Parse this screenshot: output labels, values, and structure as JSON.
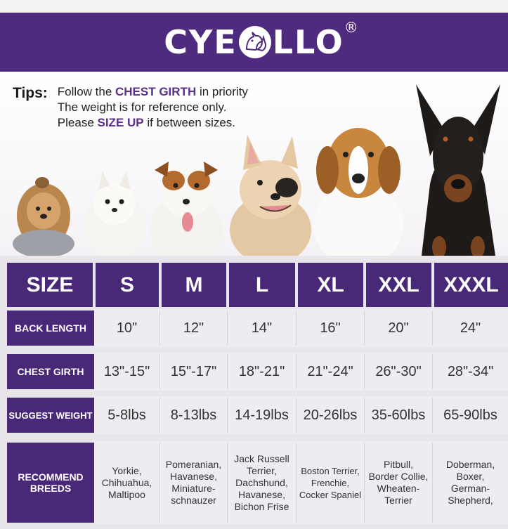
{
  "brand": {
    "left": "CYE",
    "right": "LLO",
    "reg": "®"
  },
  "tips": {
    "label": "Tips:",
    "line1_pre": "Follow the ",
    "line1_bold": "CHEST GIRTH",
    "line1_post": " in priority",
    "line2": "The weight is for reference only.",
    "line3_pre": "Please ",
    "line3_bold": "SIZE UP",
    "line3_post": " if between sizes."
  },
  "dogs": [
    "yorkie-icon",
    "pomeranian-icon",
    "jack-russell-icon",
    "french-bulldog-icon",
    "beagle-icon",
    "doberman-icon"
  ],
  "table": {
    "header_label": "SIZE",
    "sizes": [
      "S",
      "M",
      "L",
      "XL",
      "XXL",
      "XXXL"
    ],
    "rows": [
      {
        "label": "BACK LENGTH",
        "values": [
          "10\"",
          "12\"",
          "14\"",
          "16\"",
          "20\"",
          "24\""
        ]
      },
      {
        "label": "CHEST GIRTH",
        "values": [
          "13\"-15\"",
          "15\"-17\"",
          "18\"-21\"",
          "21\"-24\"",
          "26\"-30\"",
          "28\"-34\""
        ]
      },
      {
        "label": "SUGGEST WEIGHT",
        "values": [
          "5-8lbs",
          "8-13lbs",
          "14-19lbs",
          "20-26lbs",
          "35-60lbs",
          "65-90lbs"
        ]
      }
    ],
    "breeds_label": [
      "RECOMMEND",
      "BREEDS"
    ],
    "breeds": [
      [
        "Yorkie,",
        "Chihuahua,",
        "Maltipoo"
      ],
      [
        "Pomeranian,",
        "Havanese,",
        "Miniature-",
        "schnauzer"
      ],
      [
        "Jack Russell",
        "Terrier,",
        "Dachshund,",
        "Havanese,",
        "Bichon Frise"
      ],
      [
        "Boston Terrier,",
        "Frenchie,",
        "Cocker Spaniel"
      ],
      [
        "Pitbull,",
        "Border Collie,",
        "Wheaten-",
        "Terrier"
      ],
      [
        "Doberman,",
        "Boxer,",
        "German-",
        "Shepherd,"
      ]
    ]
  },
  "colors": {
    "purple": "#4a2878",
    "banner": "#4f2b7f",
    "accent": "#5a2f8a"
  }
}
